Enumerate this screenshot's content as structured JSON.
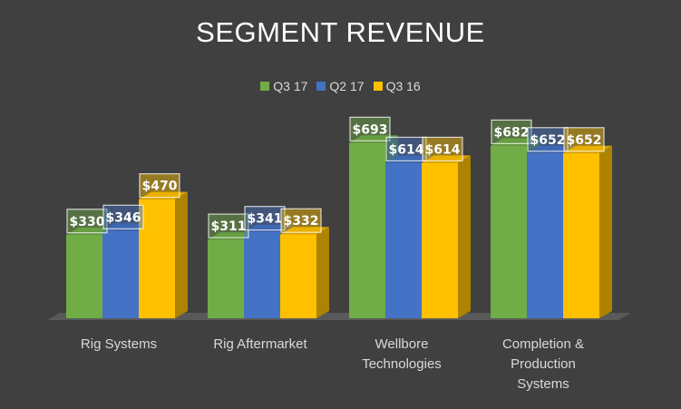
{
  "chart_data": {
    "type": "bar",
    "title": "SEGMENT REVENUE",
    "categories": [
      [
        "Rig Systems"
      ],
      [
        "Rig Aftermarket"
      ],
      [
        "Wellbore",
        "Technologies"
      ],
      [
        "Completion &",
        "Production",
        "Systems"
      ]
    ],
    "series": [
      {
        "name": "Q3 17",
        "values": [
          330,
          311,
          693,
          682
        ],
        "labels": [
          "$330",
          "$311",
          "$693",
          "$682"
        ],
        "color": "#70ad47"
      },
      {
        "name": "Q2 17",
        "values": [
          346,
          341,
          614,
          652
        ],
        "labels": [
          "$346",
          "$341",
          "$614",
          "$652"
        ],
        "color": "#4472c4"
      },
      {
        "name": "Q3 16",
        "values": [
          470,
          332,
          614,
          652
        ],
        "labels": [
          "$470",
          "$332",
          "$614",
          "$652"
        ],
        "color": "#ffc000"
      }
    ],
    "ylim": [
      0,
      800
    ],
    "grid": false,
    "legend": "top",
    "style": "3d-clustered-column"
  }
}
